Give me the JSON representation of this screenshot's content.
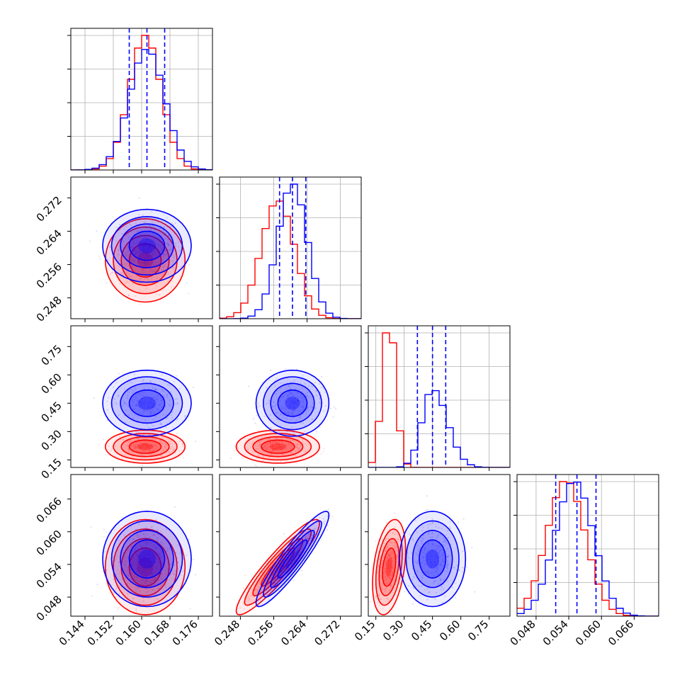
{
  "chart_data": {
    "type": "corner",
    "parameters": [
      {
        "ticks": [
          "0.144",
          "0.152",
          "0.160",
          "0.168",
          "0.176"
        ],
        "tick_values": [
          0.144,
          0.152,
          0.16,
          0.168,
          0.176
        ],
        "range": [
          0.14,
          0.18
        ]
      },
      {
        "ticks": [
          "0.248",
          "0.256",
          "0.264",
          "0.272"
        ],
        "tick_values": [
          0.248,
          0.256,
          0.264,
          0.272
        ],
        "range": [
          0.243,
          0.277
        ]
      },
      {
        "ticks": [
          "0.15",
          "0.30",
          "0.45",
          "0.60",
          "0.75"
        ],
        "tick_values": [
          0.15,
          0.3,
          0.45,
          0.6,
          0.75
        ],
        "range": [
          0.11,
          0.86
        ]
      },
      {
        "ticks": [
          "0.048",
          "0.054",
          "0.060",
          "0.066"
        ],
        "tick_values": [
          0.048,
          0.054,
          0.06,
          0.066
        ],
        "range": [
          0.0445,
          0.0705
        ]
      }
    ],
    "series": [
      {
        "color": "#ff0000",
        "mean": [
          0.161,
          0.257,
          0.22,
          0.0535
        ],
        "sigma": [
          0.0045,
          0.004,
          0.035,
          0.0035
        ],
        "corr": [
          [
            1,
            0,
            0,
            0
          ],
          [
            0,
            1,
            0,
            0.92
          ],
          [
            0,
            0,
            1,
            0.35
          ],
          [
            0,
            0.92,
            0.35,
            1
          ]
        ]
      },
      {
        "color": "#0000ff",
        "mean": [
          0.1615,
          0.2605,
          0.45,
          0.055
        ],
        "sigma": [
          0.005,
          0.0035,
          0.07,
          0.0035
        ],
        "corr": [
          [
            1,
            0,
            0,
            0
          ],
          [
            0,
            1,
            0,
            0.92
          ],
          [
            0,
            0,
            1,
            0
          ],
          [
            0,
            0.92,
            0,
            1
          ]
        ]
      }
    ],
    "quantile_lines": {
      "color": "#0000ff",
      "style": "dashed",
      "values": [
        [
          0.1565,
          0.1615,
          0.1665
        ],
        [
          0.2574,
          0.2605,
          0.2637
        ],
        [
          0.37,
          0.45,
          0.52
        ],
        [
          0.0516,
          0.0555,
          0.059
        ]
      ]
    },
    "grid": true,
    "x_tick_label_rotation": 45
  }
}
